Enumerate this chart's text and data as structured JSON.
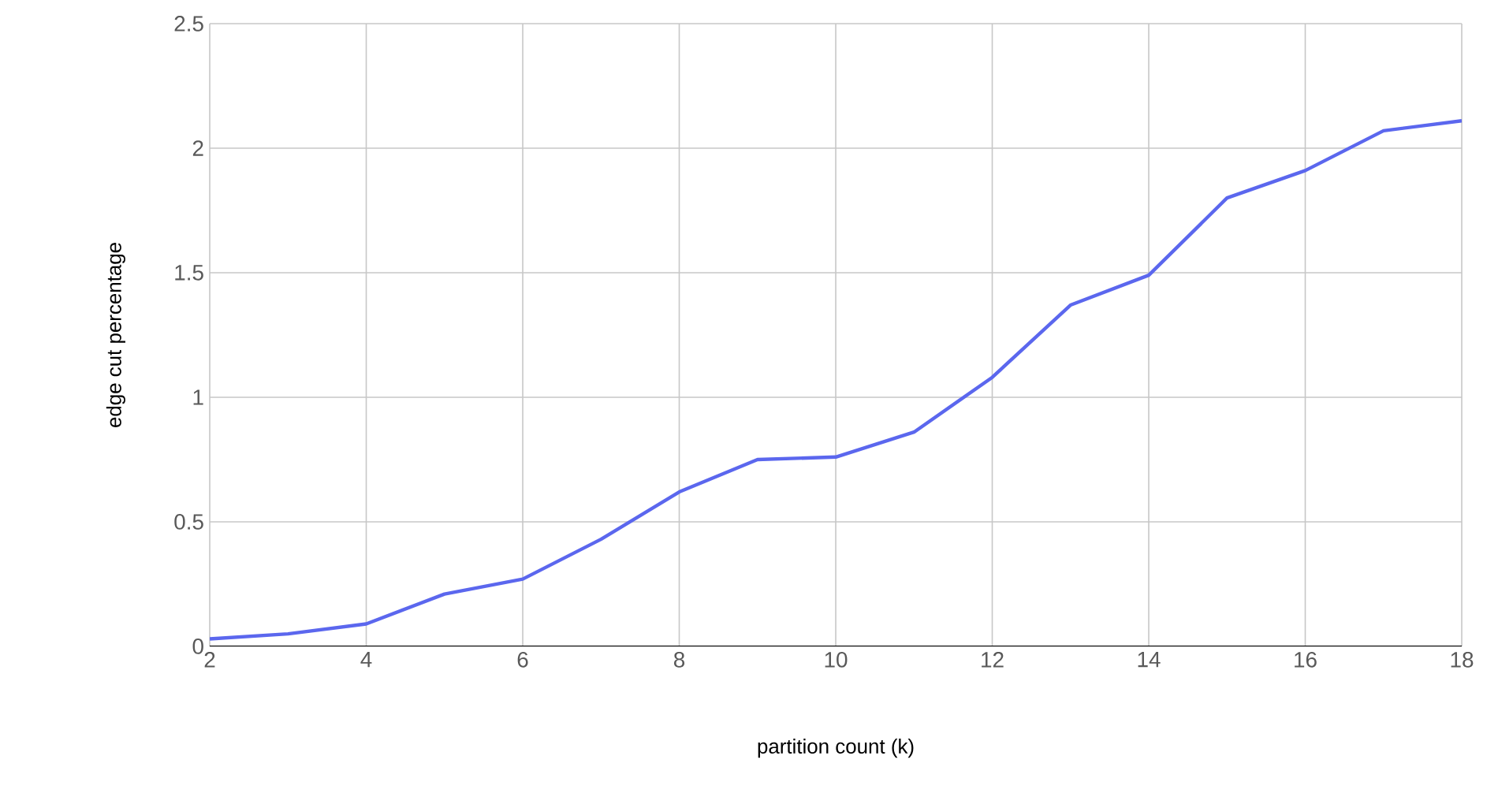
{
  "chart_data": {
    "type": "line",
    "xlabel": "partition count (k)",
    "ylabel": "edge cut percentage",
    "x": [
      2,
      3,
      4,
      5,
      6,
      7,
      8,
      9,
      10,
      11,
      12,
      13,
      14,
      15,
      16,
      17,
      18
    ],
    "series": [
      {
        "color": "#5b67ee",
        "values": [
          0.03,
          0.05,
          0.09,
          0.21,
          0.27,
          0.43,
          0.62,
          0.75,
          0.76,
          0.86,
          1.08,
          1.37,
          1.49,
          1.8,
          1.91,
          2.07,
          2.11
        ]
      }
    ],
    "xlim": [
      2,
      18
    ],
    "xticks": [
      2,
      4,
      6,
      8,
      10,
      12,
      14,
      16,
      18
    ],
    "ylim": [
      0,
      2.5
    ],
    "yticks": [
      0,
      0.5,
      1,
      1.5,
      2,
      2.5
    ],
    "grid": true,
    "marker": "none",
    "line_style": "solid"
  }
}
